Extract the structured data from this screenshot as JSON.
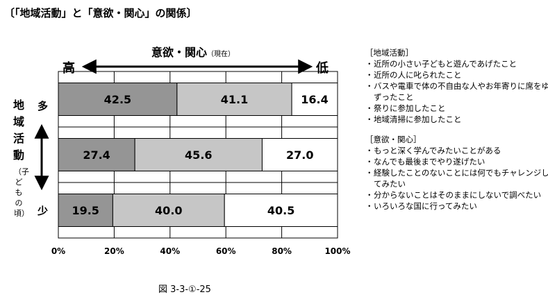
{
  "title": "〔「地域活動」と「意欲・関心」の関係〕",
  "top_axis": {
    "label": "意欲・関心",
    "note": "（現在）",
    "high": "高",
    "low": "低"
  },
  "left_axis": {
    "label": "地域活動",
    "note": "（子どもの頃）",
    "more": "多",
    "less": "少"
  },
  "caption": "図 3-3-①-25",
  "colors": {
    "dark": "#959595",
    "light": "#c6c6c6",
    "white": "#ffffff",
    "border": "#000000"
  },
  "legend": {
    "activity_header": "［地域活動］",
    "activity_items": [
      "近所の小さい子どもと遊んであげたこと",
      "近所の人に叱られたこと",
      "バスや電車で体の不自由な人やお年寄りに席をゆずったこと",
      "祭りに参加したこと",
      "地域清掃に参加したこと"
    ],
    "motivation_header": "［意欲・関心］",
    "motivation_items": [
      "もっと深く学んでみたいことがある",
      "なんでも最後までやり遂げたい",
      "経験したことのないことには何でもチャレンジしてみたい",
      "分からないことはそのままにしないで調べたい",
      "いろいろな国に行ってみたい"
    ]
  },
  "chart_data": {
    "type": "bar",
    "orientation": "horizontal",
    "stacked": true,
    "categories": [
      "多",
      "",
      "少"
    ],
    "series": [
      {
        "values": [
          42.5,
          27.4,
          19.5
        ]
      },
      {
        "values": [
          41.1,
          45.6,
          40.0
        ]
      },
      {
        "values": [
          16.4,
          27.0,
          40.5
        ]
      }
    ],
    "xlim": [
      0,
      100
    ],
    "x_ticks": [
      "0%",
      "20%",
      "40%",
      "60%",
      "80%",
      "100%"
    ],
    "grid": true
  }
}
